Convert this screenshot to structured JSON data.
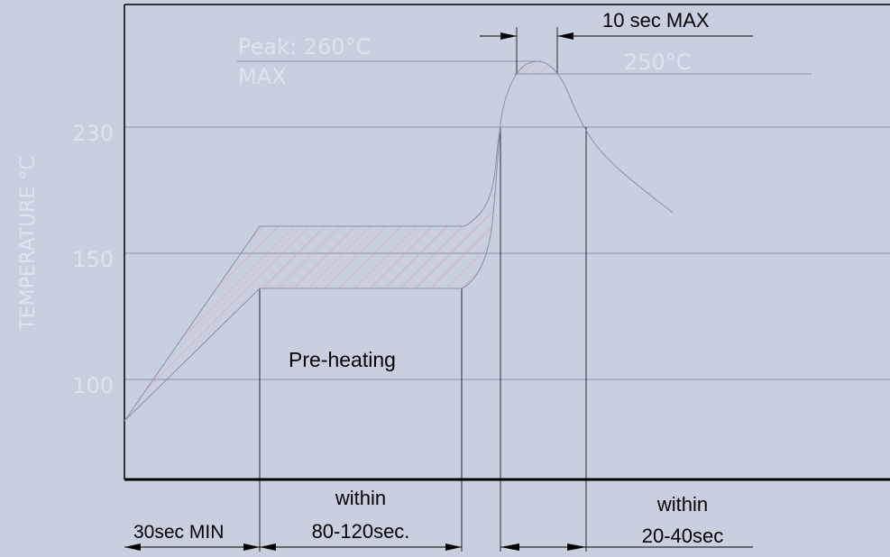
{
  "chart_data": {
    "type": "line",
    "title": "",
    "xlabel": "",
    "ylabel": "TEMPERATURE  °C",
    "yticks": [
      {
        "label": "230",
        "value": 230
      },
      {
        "label": "150",
        "value": 150
      },
      {
        "label": "100",
        "value": 100
      }
    ],
    "annotations": {
      "peak": "Peak: 260°C",
      "peak_max": "MAX",
      "level_250": "250°C",
      "ten_sec": "10 sec  MAX",
      "preheating": "Pre-heating",
      "seg1": "30sec MIN",
      "seg2_line1": "within",
      "seg2_line2": "80-120sec.",
      "seg4_line1": "within",
      "seg4_line2": "20-40sec"
    },
    "colors": {
      "background": "#c8d0e0",
      "curve": "#8a90a4",
      "hatch": "#e89aa8",
      "light_text": "#dce3ef",
      "axis": "#000000"
    }
  }
}
